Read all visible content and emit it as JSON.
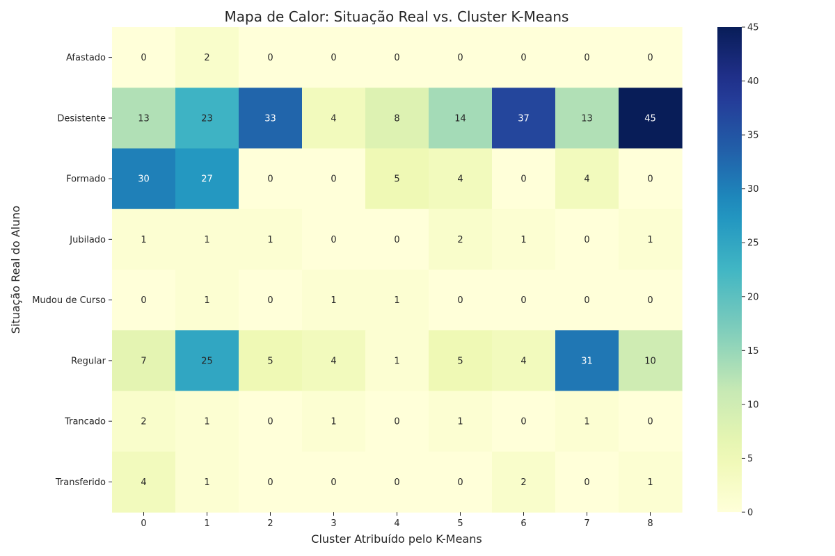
{
  "chart_data": {
    "type": "heatmap",
    "title": "Mapa de Calor: Situação Real vs. Cluster K-Means",
    "xlabel": "Cluster Atribuído pelo K-Means",
    "ylabel": "Situação Real do Aluno",
    "x_categories": [
      "0",
      "1",
      "2",
      "3",
      "4",
      "5",
      "6",
      "7",
      "8"
    ],
    "y_categories": [
      "Afastado",
      "Desistente",
      "Formado",
      "Jubilado",
      "Mudou de Curso",
      "Regular",
      "Trancado",
      "Transferido"
    ],
    "values": [
      [
        0,
        2,
        0,
        0,
        0,
        0,
        0,
        0,
        0
      ],
      [
        13,
        23,
        33,
        4,
        8,
        14,
        37,
        13,
        45
      ],
      [
        30,
        27,
        0,
        0,
        5,
        4,
        0,
        4,
        0
      ],
      [
        1,
        1,
        1,
        0,
        0,
        2,
        1,
        0,
        1
      ],
      [
        0,
        1,
        0,
        1,
        1,
        0,
        0,
        0,
        0
      ],
      [
        7,
        25,
        5,
        4,
        1,
        5,
        4,
        31,
        10
      ],
      [
        2,
        1,
        0,
        1,
        0,
        1,
        0,
        1,
        0
      ],
      [
        4,
        1,
        0,
        0,
        0,
        0,
        2,
        0,
        1
      ]
    ],
    "colorbar": {
      "min": 0,
      "max": 45,
      "ticks": [
        0,
        5,
        10,
        15,
        20,
        25,
        30,
        35,
        40,
        45
      ],
      "colormap": "YlGnBu"
    }
  }
}
